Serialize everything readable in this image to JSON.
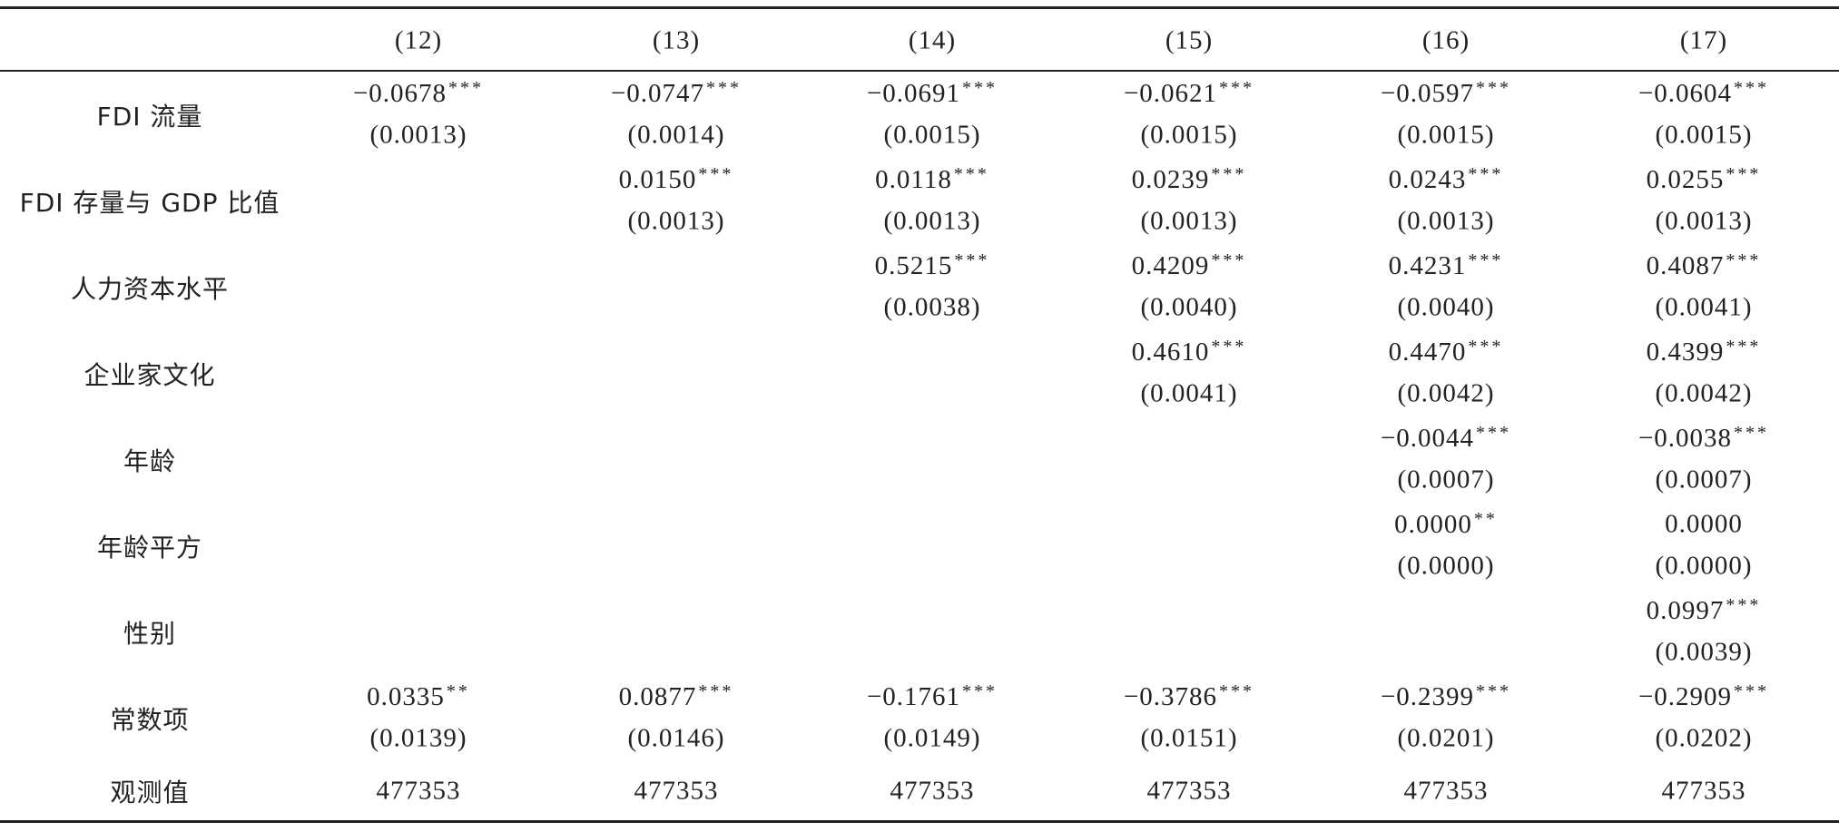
{
  "table": {
    "columns": [
      "(12)",
      "(13)",
      "(14)",
      "(15)",
      "(16)",
      "(17)"
    ],
    "rows": [
      {
        "label": "FDI 流量",
        "cells": [
          {
            "coef": "−0.0678",
            "stars": "***",
            "se": "(0.0013)"
          },
          {
            "coef": "−0.0747",
            "stars": "***",
            "se": "(0.0014)"
          },
          {
            "coef": "−0.0691",
            "stars": "***",
            "se": "(0.0015)"
          },
          {
            "coef": "−0.0621",
            "stars": "***",
            "se": "(0.0015)"
          },
          {
            "coef": "−0.0597",
            "stars": "***",
            "se": "(0.0015)"
          },
          {
            "coef": "−0.0604",
            "stars": "***",
            "se": "(0.0015)"
          }
        ]
      },
      {
        "label": "FDI 存量与 GDP 比值",
        "cells": [
          null,
          {
            "coef": "0.0150",
            "stars": "***",
            "se": "(0.0013)"
          },
          {
            "coef": "0.0118",
            "stars": "***",
            "se": "(0.0013)"
          },
          {
            "coef": "0.0239",
            "stars": "***",
            "se": "(0.0013)"
          },
          {
            "coef": "0.0243",
            "stars": "***",
            "se": "(0.0013)"
          },
          {
            "coef": "0.0255",
            "stars": "***",
            "se": "(0.0013)"
          }
        ]
      },
      {
        "label": "人力资本水平",
        "cells": [
          null,
          null,
          {
            "coef": "0.5215",
            "stars": "***",
            "se": "(0.0038)"
          },
          {
            "coef": "0.4209",
            "stars": "***",
            "se": "(0.0040)"
          },
          {
            "coef": "0.4231",
            "stars": "***",
            "se": "(0.0040)"
          },
          {
            "coef": "0.4087",
            "stars": "***",
            "se": "(0.0041)"
          }
        ]
      },
      {
        "label": "企业家文化",
        "cells": [
          null,
          null,
          null,
          {
            "coef": "0.4610",
            "stars": "***",
            "se": "(0.0041)"
          },
          {
            "coef": "0.4470",
            "stars": "***",
            "se": "(0.0042)"
          },
          {
            "coef": "0.4399",
            "stars": "***",
            "se": "(0.0042)"
          }
        ]
      },
      {
        "label": "年龄",
        "cells": [
          null,
          null,
          null,
          null,
          {
            "coef": "−0.0044",
            "stars": "***",
            "se": "(0.0007)"
          },
          {
            "coef": "−0.0038",
            "stars": "***",
            "se": "(0.0007)"
          }
        ]
      },
      {
        "label": "年龄平方",
        "cells": [
          null,
          null,
          null,
          null,
          {
            "coef": "0.0000",
            "stars": "**",
            "se": "(0.0000)"
          },
          {
            "coef": "0.0000",
            "se": "(0.0000)"
          }
        ]
      },
      {
        "label": "性别",
        "cells": [
          null,
          null,
          null,
          null,
          null,
          {
            "coef": "0.0997",
            "stars": "***",
            "se": "(0.0039)"
          }
        ]
      },
      {
        "label": "常数项",
        "cells": [
          {
            "coef": "0.0335",
            "stars": "**",
            "se": "(0.0139)"
          },
          {
            "coef": "0.0877",
            "stars": "***",
            "se": "(0.0146)"
          },
          {
            "coef": "−0.1761",
            "stars": "***",
            "se": "(0.0149)"
          },
          {
            "coef": "−0.3786",
            "stars": "***",
            "se": "(0.0151)"
          },
          {
            "coef": "−0.2399",
            "stars": "***",
            "se": "(0.0201)"
          },
          {
            "coef": "−0.2909",
            "stars": "***",
            "se": "(0.0202)"
          }
        ]
      }
    ],
    "observations": {
      "label": "观测值",
      "values": [
        477353,
        477353,
        477353,
        477353,
        477353,
        477353
      ]
    }
  }
}
